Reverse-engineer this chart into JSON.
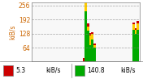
{
  "title": "",
  "ylabel": "kiB/s",
  "yticks": [
    64,
    128,
    192,
    256
  ],
  "ylim": [
    0,
    270
  ],
  "background_color": "#f0f0f0",
  "plot_bg": "#f8f8f8",
  "bar_color_green": "#00aa00",
  "bar_color_yellow": "#ffcc00",
  "bar_color_red": "#cc0000",
  "legend": [
    {
      "color": "#cc0000",
      "value": "5.3",
      "unit": "kiB/s"
    },
    {
      "color": "#00aa00",
      "value": "140.8",
      "unit": "kiB/s"
    }
  ],
  "n_bars": 50,
  "green_bars": [
    0,
    0,
    0,
    0,
    0,
    0,
    0,
    0,
    0,
    0,
    0,
    0,
    0,
    0,
    0,
    0,
    0,
    0,
    0,
    0,
    0,
    0,
    0,
    0,
    0,
    230,
    140,
    75,
    100,
    65,
    0,
    0,
    0,
    0,
    0,
    0,
    0,
    0,
    0,
    0,
    0,
    0,
    0,
    0,
    0,
    0,
    0,
    145,
    125,
    145
  ],
  "yellow_bars": [
    0,
    0,
    0,
    0,
    0,
    0,
    0,
    0,
    0,
    0,
    0,
    0,
    0,
    0,
    0,
    0,
    0,
    0,
    0,
    0,
    0,
    0,
    0,
    0,
    0,
    40,
    20,
    45,
    25,
    10,
    0,
    0,
    0,
    0,
    0,
    0,
    0,
    0,
    0,
    0,
    0,
    0,
    0,
    0,
    0,
    0,
    0,
    25,
    20,
    30
  ],
  "red_bars": [
    0,
    0,
    0,
    0,
    0,
    0,
    0,
    0,
    0,
    0,
    0,
    0,
    0,
    0,
    0,
    0,
    0,
    0,
    0,
    0,
    0,
    0,
    0,
    0,
    18,
    20,
    15,
    12,
    10,
    8,
    0,
    0,
    0,
    0,
    0,
    0,
    0,
    0,
    0,
    0,
    0,
    0,
    0,
    0,
    0,
    0,
    0,
    8,
    8,
    10
  ]
}
